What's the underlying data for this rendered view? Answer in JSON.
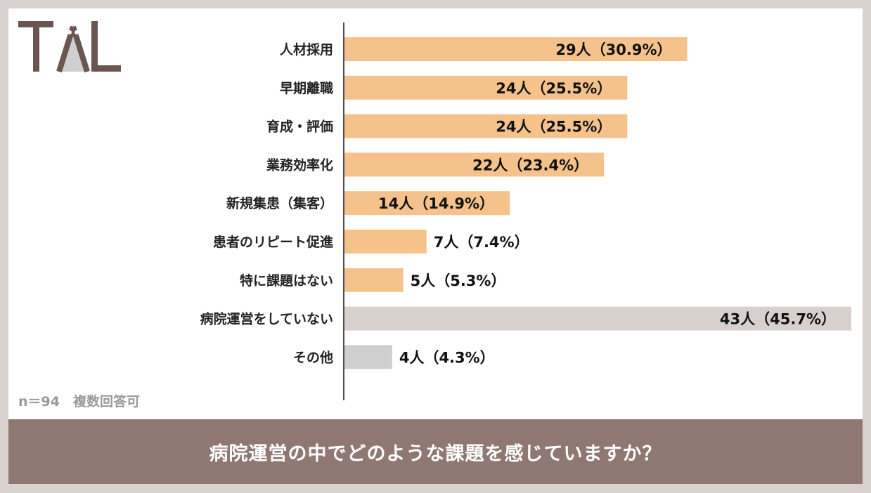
{
  "logo": {
    "text": "TAL"
  },
  "chart_data": {
    "type": "bar",
    "orientation": "horizontal",
    "categories": [
      "人材採用",
      "早期離職",
      "育成・評価",
      "業務効率化",
      "新規集患（集客）",
      "患者のリピート促進",
      "特に課題はない",
      "病院運営をしていない",
      "その他"
    ],
    "values": [
      29,
      24,
      24,
      22,
      14,
      7,
      5,
      43,
      4
    ],
    "percents": [
      30.9,
      25.5,
      25.5,
      23.4,
      14.9,
      7.4,
      5.3,
      45.7,
      4.3
    ],
    "labels": [
      "29人（30.9%）",
      "24人（25.5%）",
      "24人（25.5%）",
      "22人（23.4%）",
      "14人（14.9%）",
      "7人（7.4%）",
      "5人（5.3%）",
      "43人（45.7%）",
      "4人（4.3%）"
    ],
    "bar_colors": [
      "#f5c28c",
      "#f5c28c",
      "#f5c28c",
      "#f5c28c",
      "#f5c28c",
      "#f5c28c",
      "#f5c28c",
      "#d8d0cd",
      "#cfcfcf"
    ],
    "xlim": [
      0,
      45.7
    ],
    "grid": false,
    "legend": false
  },
  "note": "n＝94　複数回答可",
  "question": "病院運営の中でどのような課題を感じていますか？",
  "colors": {
    "background": "#d9d2cf",
    "footer": "#8f7772",
    "logo": "#6b5550"
  }
}
